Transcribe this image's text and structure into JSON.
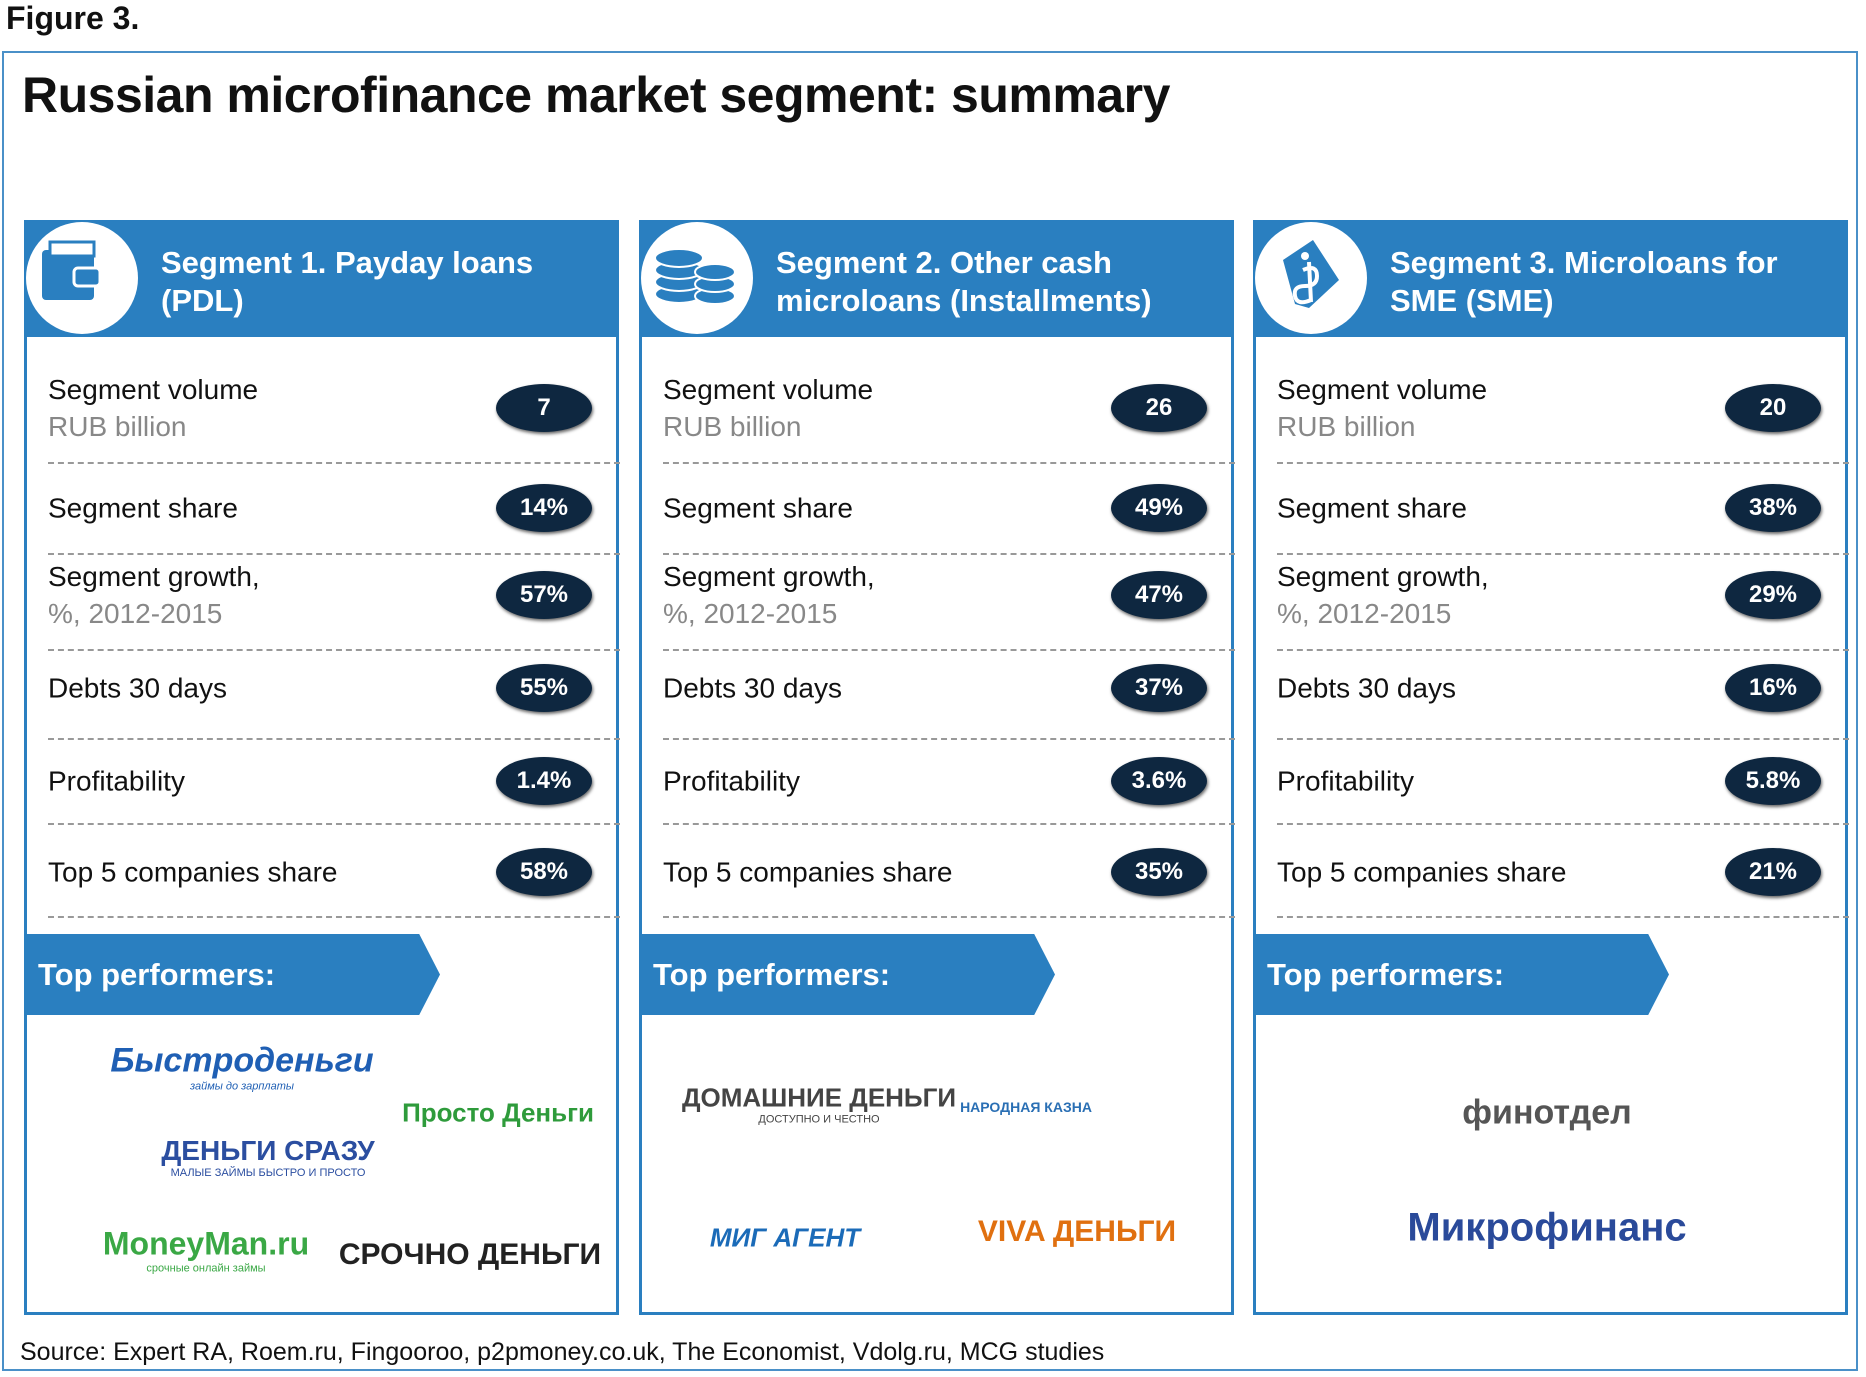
{
  "figure_label": "Figure 3.",
  "title": "Russian microfinance market segment: summary",
  "segments": [
    {
      "title_lines": [
        "Segment 1. Payday loans",
        "(PDL)"
      ],
      "metrics": [
        {
          "label": "Segment volume",
          "sublabel": "RUB billion",
          "value": "7"
        },
        {
          "label": "Segment share",
          "value": "14%"
        },
        {
          "label": "Segment growth,",
          "sublabel": "%, 2012-2015",
          "value": "57%"
        },
        {
          "label": "Debts 30 days",
          "value": "55%"
        },
        {
          "label": "Profitability",
          "value": "1.4%"
        },
        {
          "label": "Top 5 companies share",
          "value": "58%"
        }
      ],
      "top_performers_label": "Top performers:",
      "logos": [
        {
          "name": "Быстроденьги",
          "tagline": "займы до зарплаты"
        },
        {
          "name": "Просто Деньги"
        },
        {
          "name": "ДЕНЬГИ СРАЗУ",
          "tagline": "МАЛЫЕ ЗАЙМЫ БЫСТРО И ПРОСТО"
        },
        {
          "name": "MoneyMan.ru",
          "tagline": "срочные онлайн займы"
        },
        {
          "name": "СРОЧНО ДЕНЬГИ"
        }
      ]
    },
    {
      "title_lines": [
        "Segment 2. Other cash",
        "microloans (Installments)"
      ],
      "metrics": [
        {
          "label": "Segment volume",
          "sublabel": "RUB billion",
          "value": "26"
        },
        {
          "label": "Segment share",
          "value": "49%"
        },
        {
          "label": "Segment growth,",
          "sublabel": "%, 2012-2015",
          "value": "47%"
        },
        {
          "label": "Debts 30 days",
          "value": "37%"
        },
        {
          "label": "Profitability",
          "value": "3.6%"
        },
        {
          "label": "Top 5 companies share",
          "value": "35%"
        }
      ],
      "top_performers_label": "Top performers:",
      "logos": [
        {
          "name": "ДОМАШНИЕ ДЕНЬГИ",
          "tagline": "ДОСТУПНО И ЧЕСТНО"
        },
        {
          "name": "НАРОДНАЯ КАЗНА"
        },
        {
          "name": "МИГ АГЕНТ"
        },
        {
          "name": "VIVA ДЕНЬГИ"
        }
      ]
    },
    {
      "title_lines": [
        "Segment 3. Microloans for",
        "SME (SME)"
      ],
      "metrics": [
        {
          "label": "Segment volume",
          "sublabel": "RUB billion",
          "value": "20"
        },
        {
          "label": "Segment share",
          "value": "38%"
        },
        {
          "label": "Segment growth,",
          "sublabel": "%, 2012-2015",
          "value": "29%"
        },
        {
          "label": "Debts 30 days",
          "value": "16%"
        },
        {
          "label": "Profitability",
          "value": "5.8%"
        },
        {
          "label": "Top 5 companies share",
          "value": "21%"
        }
      ],
      "top_performers_label": "Top performers:",
      "logos": [
        {
          "name": "финотдел"
        },
        {
          "name": "Микрофинанс"
        }
      ]
    }
  ],
  "source": "Source:  Expert RA, Roem.ru, Fingooroo, p2pmoney.co.uk, The Economist, Vdolg.ru, MCG studies"
}
